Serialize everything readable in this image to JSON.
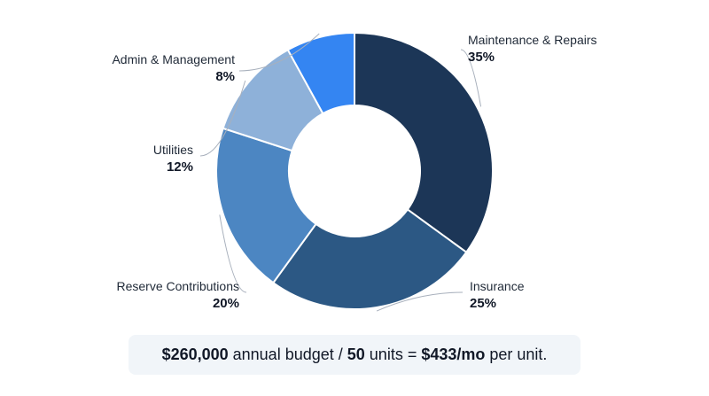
{
  "chart_data": {
    "type": "pie",
    "style": "donut",
    "categories": [
      "Maintenance & Repairs",
      "Insurance",
      "Reserve Contributions",
      "Utilities",
      "Admin & Management"
    ],
    "values": [
      35,
      25,
      20,
      12,
      8
    ],
    "value_labels": [
      "35%",
      "25%",
      "20%",
      "12%",
      "8%"
    ],
    "colors": [
      "#1c3657",
      "#2c5884",
      "#4c86c2",
      "#8eb1d9",
      "#3485f2"
    ],
    "title": "",
    "legend": "none"
  },
  "summary": {
    "budget": "$260,000",
    "budget_text": " annual budget / ",
    "units": "50",
    "units_text": " units = ",
    "per_unit": "$433/mo",
    "per_unit_text": " per unit."
  }
}
